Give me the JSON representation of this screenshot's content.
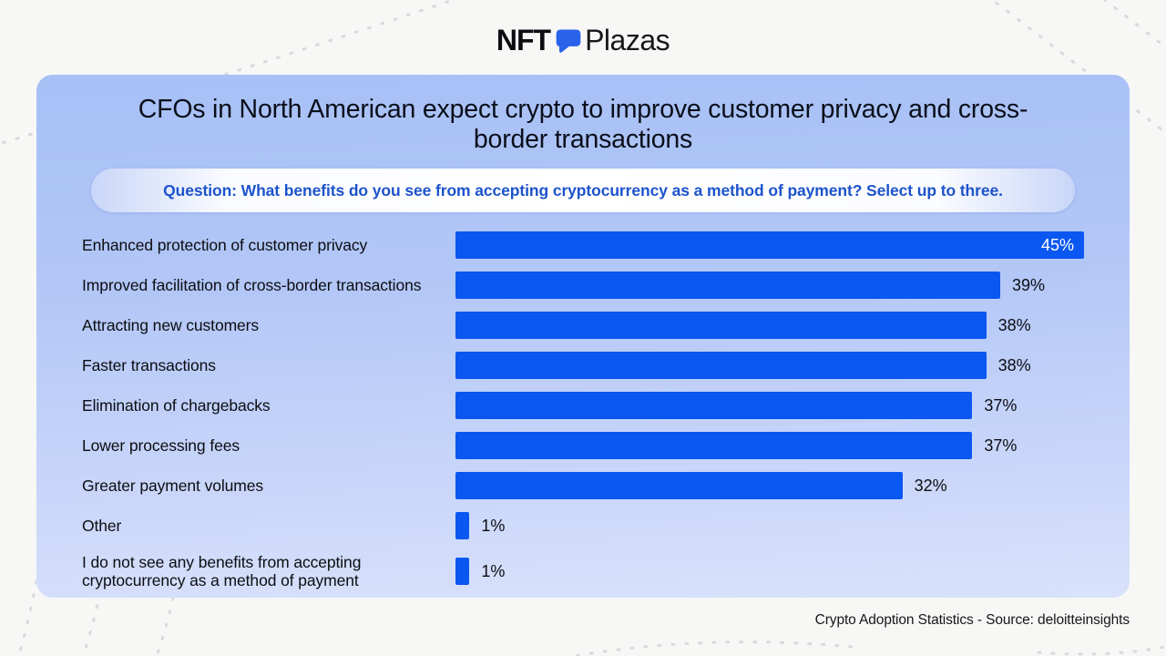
{
  "logo": {
    "part1": "NFT",
    "part2": "Plazas",
    "icon_color": "#2a63ea"
  },
  "panel": {
    "title": "CFOs in North American expect crypto to improve customer privacy and cross-border transactions",
    "question": "Question: What benefits do you see from accepting cryptocurrency as a method of payment? Select up to three."
  },
  "chart_data": {
    "type": "bar",
    "orientation": "horizontal",
    "title": "CFOs in North American expect crypto to improve customer privacy and cross-border transactions",
    "subtitle": "Question: What benefits do you see from accepting cryptocurrency as a method of payment? Select up to three.",
    "categories": [
      "Enhanced protection of customer privacy",
      "Improved facilitation of cross-border transactions",
      "Attracting new customers",
      "Faster transactions",
      "Elimination of chargebacks",
      "Lower processing fees",
      "Greater payment volumes",
      "Other",
      "I do not see any benefits from accepting cryptocurrency as a method of payment"
    ],
    "values": [
      45,
      39,
      38,
      38,
      37,
      37,
      32,
      1,
      1
    ],
    "value_labels": [
      "45%",
      "39%",
      "38%",
      "38%",
      "37%",
      "37%",
      "32%",
      "1%",
      "1%"
    ],
    "xlim": [
      0,
      45
    ],
    "grid": false,
    "legend": false,
    "bar_color": "#0a57f1",
    "value_label_style": "max bar: white label inside bar; all others: black label right of bar",
    "source": "Crypto Adoption Statistics - Source: deloitteinsights"
  },
  "footer": {
    "source": "Crypto Adoption Statistics - Source: deloitteinsights"
  },
  "colors": {
    "bar": "#0a57f1",
    "card_gradient_top": "#a7c0f6",
    "card_gradient_bottom": "#d9e2fb",
    "question_text": "#1d53cb",
    "title_text": "#0a0f1a",
    "page_background": "#f7f7f5",
    "logo_icon": "#2a63ea"
  }
}
